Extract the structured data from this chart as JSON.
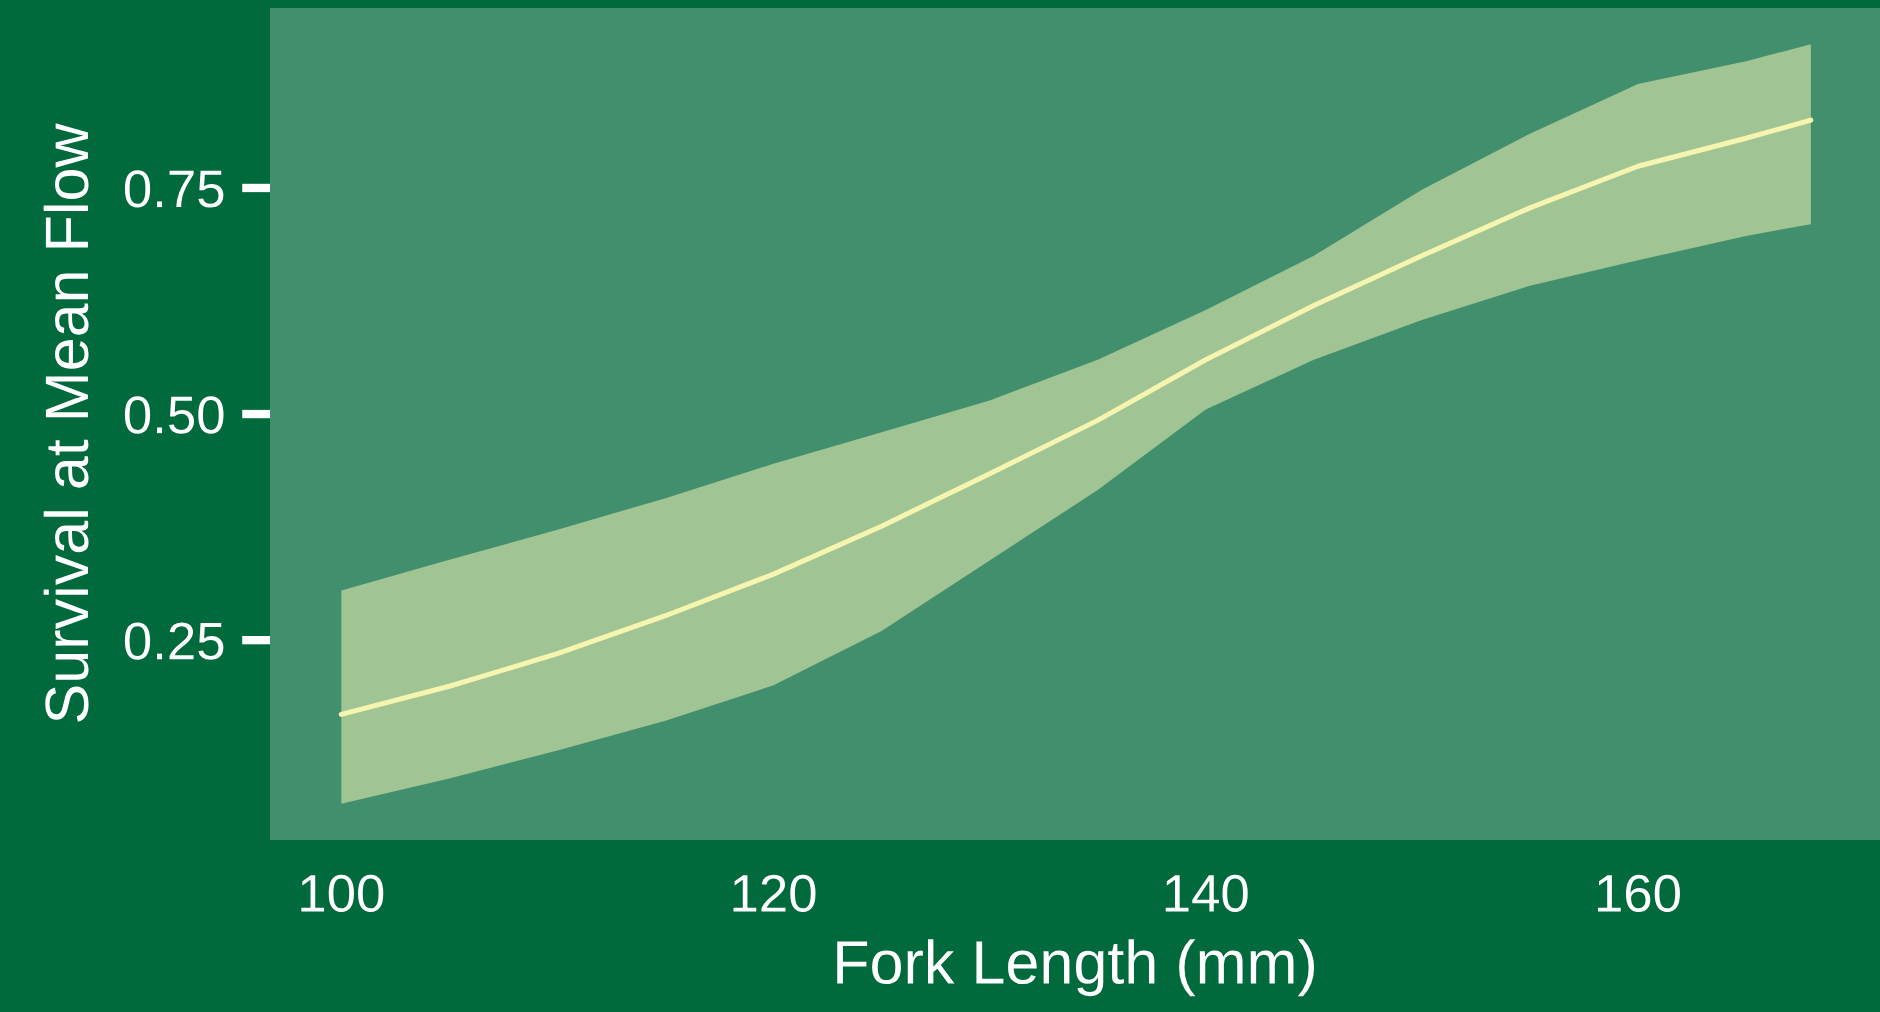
{
  "chart_data": {
    "type": "line",
    "xlabel": "Fork Length (mm)",
    "ylabel": "Survival at Mean Flow",
    "x": [
      100,
      105,
      110,
      115,
      120,
      125,
      130,
      135,
      140,
      145,
      150,
      155,
      160,
      165,
      168
    ],
    "series": [
      {
        "color": "#f5f5b0",
        "values": [
          0.168,
          0.199,
          0.235,
          0.277,
          0.323,
          0.376,
          0.434,
          0.493,
          0.56,
          0.62,
          0.675,
          0.728,
          0.774,
          0.805,
          0.825
        ],
        "lower": [
          0.069,
          0.097,
          0.128,
          0.161,
          0.2,
          0.26,
          0.338,
          0.416,
          0.505,
          0.56,
          0.604,
          0.642,
          0.67,
          0.697,
          0.71
        ],
        "upper": [
          0.305,
          0.339,
          0.372,
          0.407,
          0.445,
          0.48,
          0.515,
          0.56,
          0.615,
          0.675,
          0.748,
          0.81,
          0.865,
          0.89,
          0.909
        ]
      }
    ],
    "xlim": [
      96.7,
      171.2
    ],
    "ylim": [
      0.029,
      0.949
    ],
    "xticks": [
      100,
      120,
      140,
      160
    ],
    "yticks": [
      0.25,
      {
        "value": 0.5,
        "label": "0.50"
      },
      0.75
    ]
  }
}
